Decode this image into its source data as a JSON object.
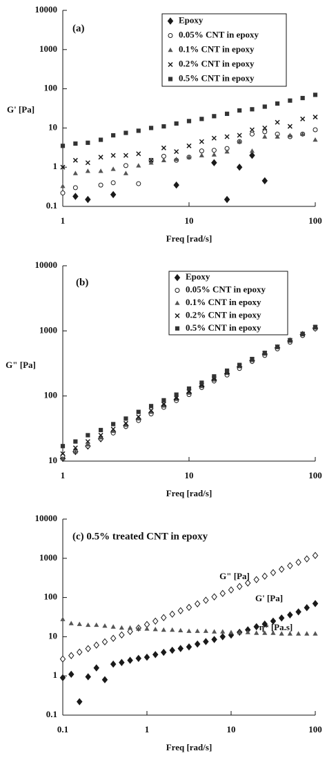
{
  "chart_data": [
    {
      "type": "scatter",
      "panel_label": "(a)",
      "ylabel": "G' [Pa]",
      "xlabel": "Freq [rad/s]",
      "log_x": true,
      "log_y": true,
      "legend": "upper right",
      "xlim": [
        1,
        100
      ],
      "xticks": [
        1,
        10,
        100
      ],
      "ylim": [
        0.1,
        10000
      ],
      "yticks": [
        0.1,
        1,
        10,
        100,
        1000,
        10000
      ],
      "x": [
        1,
        1.26,
        1.58,
        2,
        2.51,
        3.16,
        3.98,
        5.01,
        6.31,
        7.94,
        10,
        12.6,
        15.8,
        20,
        25.1,
        31.6,
        39.8,
        50.1,
        63.1,
        79.4,
        100
      ],
      "series": [
        {
          "name": "Epoxy",
          "marker": "diamond",
          "color": "#1a1a1a",
          "values": [
            null,
            0.18,
            0.15,
            null,
            0.2,
            null,
            null,
            null,
            null,
            0.35,
            null,
            null,
            1.3,
            0.15,
            1.0,
            2.0,
            0.45,
            null,
            null,
            null,
            null
          ]
        },
        {
          "name": "0.05% CNT in epoxy",
          "marker": "circle",
          "color": "#1a1a1a",
          "values": [
            0.22,
            0.3,
            null,
            0.35,
            0.4,
            1.1,
            0.38,
            1.5,
            1.9,
            1.5,
            1.8,
            2.6,
            2.7,
            3.0,
            4.5,
            7.0,
            8.0,
            7.0,
            6.0,
            7.0,
            9.0
          ]
        },
        {
          "name": "0.1% CNT in epoxy",
          "marker": "triangle",
          "color": "#555555",
          "values": [
            0.33,
            0.7,
            0.8,
            0.8,
            0.9,
            0.7,
            1.1,
            1.3,
            1.5,
            1.6,
            1.8,
            2.0,
            2.1,
            2.5,
            4.5,
            2.6,
            6.0,
            6.0,
            6.5,
            7.0,
            5.0
          ]
        },
        {
          "name": "0.2% CNT in epoxy",
          "marker": "cross",
          "color": "#1a1a1a",
          "values": [
            1.0,
            1.5,
            1.3,
            1.8,
            2.0,
            2.0,
            2.2,
            1.5,
            3.1,
            2.5,
            3.5,
            4.5,
            5.5,
            6.0,
            6.5,
            9.0,
            10,
            14,
            11,
            17,
            19
          ]
        },
        {
          "name": "0.5% CNT in epoxy",
          "marker": "square",
          "color": "#333333",
          "values": [
            3.5,
            4.0,
            4.2,
            5.0,
            6.5,
            7.5,
            8.5,
            10,
            11,
            13,
            15,
            17,
            20,
            23,
            28,
            30,
            35,
            42,
            50,
            58,
            70
          ]
        }
      ]
    },
    {
      "type": "scatter",
      "panel_label": "(b)",
      "ylabel": "G\" [Pa]",
      "xlabel": "Freq [rad/s]",
      "log_x": true,
      "log_y": true,
      "legend": "upper right",
      "xlim": [
        1,
        100
      ],
      "xticks": [
        1,
        10,
        100
      ],
      "ylim": [
        10,
        10000
      ],
      "yticks": [
        10,
        100,
        1000,
        10000
      ],
      "x": [
        1,
        1.26,
        1.58,
        2,
        2.51,
        3.16,
        3.98,
        5.01,
        6.31,
        7.94,
        10,
        12.6,
        15.8,
        20,
        25.1,
        31.6,
        39.8,
        50.1,
        63.1,
        79.4,
        100
      ],
      "series": [
        {
          "name": "Epoxy",
          "marker": "diamond",
          "color": "#1a1a1a",
          "values": [
            11,
            14,
            17,
            22,
            28,
            35,
            44,
            55,
            70,
            88,
            110,
            140,
            175,
            220,
            280,
            350,
            440,
            550,
            700,
            880,
            1100
          ]
        },
        {
          "name": "0.05% CNT in epoxy",
          "marker": "circle",
          "color": "#1a1a1a",
          "values": [
            12,
            14,
            17,
            22,
            27,
            34,
            42,
            53,
            67,
            85,
            105,
            135,
            170,
            210,
            265,
            340,
            420,
            530,
            670,
            850,
            1080
          ]
        },
        {
          "name": "0.1% CNT in epoxy",
          "marker": "triangle",
          "color": "#555555",
          "values": [
            11,
            14,
            18,
            23,
            29,
            36,
            45,
            57,
            71,
            90,
            112,
            142,
            178,
            225,
            285,
            355,
            445,
            560,
            705,
            885,
            1120
          ]
        },
        {
          "name": "0.2% CNT in epoxy",
          "marker": "cross",
          "color": "#1a1a1a",
          "values": [
            13,
            16,
            20,
            25,
            31,
            38,
            48,
            60,
            75,
            93,
            117,
            147,
            185,
            230,
            290,
            365,
            455,
            570,
            715,
            895,
            1130
          ]
        },
        {
          "name": "0.5% CNT in epoxy",
          "marker": "square",
          "color": "#333333",
          "values": [
            17,
            20,
            25,
            30,
            37,
            45,
            57,
            70,
            86,
            105,
            130,
            160,
            200,
            245,
            300,
            370,
            460,
            570,
            720,
            900,
            1150
          ]
        }
      ]
    },
    {
      "type": "scatter",
      "panel_label": "(c) 0.5% treated CNT in epoxy",
      "xlabel": "Freq [rad/s]",
      "log_x": true,
      "log_y": true,
      "xlim": [
        0.1,
        100
      ],
      "xticks": [
        0.1,
        1,
        10,
        100
      ],
      "ylim": [
        0.1,
        10000
      ],
      "yticks": [
        0.1,
        1,
        10,
        100,
        1000,
        10000
      ],
      "x": [
        0.1,
        0.126,
        0.158,
        0.2,
        0.251,
        0.316,
        0.398,
        0.501,
        0.631,
        0.794,
        1,
        1.26,
        1.58,
        2,
        2.51,
        3.16,
        3.98,
        5.01,
        6.31,
        7.94,
        10,
        12.6,
        15.8,
        20,
        25.1,
        31.6,
        39.8,
        50.1,
        63.1,
        79.4,
        100
      ],
      "annotations": [
        "G\" [Pa]",
        "G' [Pa]",
        "η* [Pa.s]"
      ],
      "series": [
        {
          "marker": "open-diamond",
          "color": "#1a1a1a",
          "values": [
            2.7,
            3.3,
            4.05,
            4.96,
            6.1,
            7.4,
            9.1,
            11.1,
            13.6,
            16.7,
            20.5,
            25,
            30.7,
            37.6,
            46,
            56,
            69,
            85,
            104,
            127,
            156,
            191,
            234,
            286,
            350,
            430,
            526,
            645,
            790,
            965,
            1180
          ]
        },
        {
          "marker": "diamond",
          "color": "#1a1a1a",
          "values": [
            0.9,
            1.1,
            0.22,
            0.95,
            1.6,
            0.8,
            2.0,
            2.2,
            2.5,
            2.8,
            3.0,
            3.5,
            4.0,
            4.5,
            5.0,
            5.5,
            6.5,
            7.5,
            8.5,
            10,
            11,
            13,
            15,
            18,
            21,
            25,
            30,
            36,
            43,
            55,
            70
          ]
        },
        {
          "marker": "triangle",
          "color": "#555555",
          "values": [
            28,
            22,
            21,
            20,
            20,
            19,
            18,
            17,
            17,
            16,
            16,
            15.5,
            15,
            15,
            14.5,
            14,
            14,
            14,
            13.5,
            13.5,
            13,
            13,
            13,
            12.5,
            12.5,
            12.5,
            12,
            12,
            12,
            12,
            12
          ]
        }
      ]
    }
  ]
}
